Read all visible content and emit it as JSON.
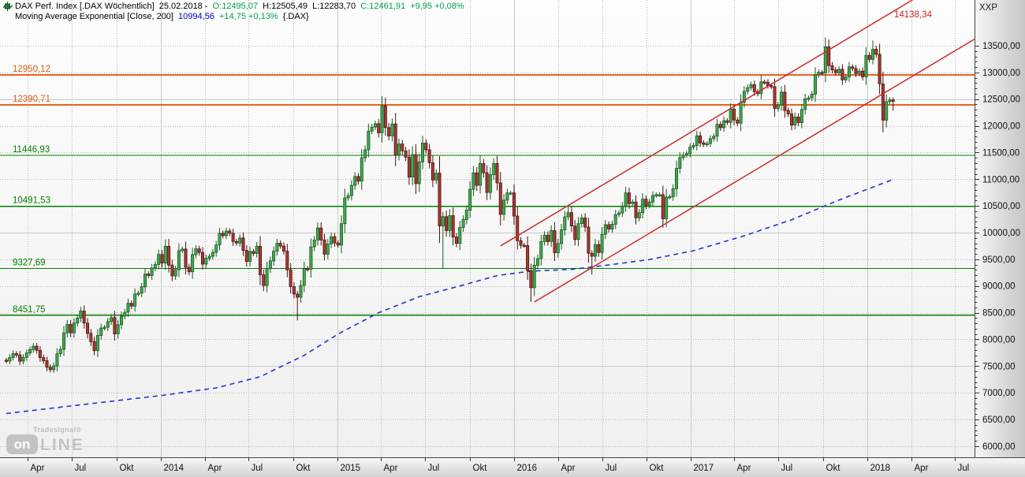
{
  "header": {
    "line1": {
      "instrument": "DAX Perf. Index [.DAX  Wöchentlich]",
      "date": "25.02.2018 -",
      "open": "O:12495,07",
      "high": "H:12505,49",
      "low": "L:12283,70",
      "close": "C:12461,91",
      "change": "+9,95 +0,08%"
    },
    "line2": {
      "indicator": "Moving Average Exponential [Close, 200]",
      "value": "10994,56",
      "change": "+14,75 +0,13%",
      "symbol": "{.DAX}"
    }
  },
  "logo": {
    "brand": "Tradesignal®",
    "box": "on",
    "line": "LINE"
  },
  "colors": {
    "quote_green": "#00a050",
    "quote_blue": "#0000cc",
    "level_green": "#008000",
    "level_orange": "#e8641e",
    "channel_red": "#cc2a2a",
    "ema_blue": "#2233cc",
    "candle_up_fill": "#44a94f",
    "candle_up_stroke": "#17591f",
    "candle_down_fill": "#a93a35",
    "candle_down_stroke": "#4a100d",
    "grid_dotted": "#b5b5b5",
    "grid_solid": "#c6cdc6",
    "axis_text": "#111111"
  },
  "chart_data": {
    "type": "candlestick",
    "timeframe": "weekly",
    "symbol": ".DAX",
    "title": "DAX Perf. Index weekly candles with EMA(200), horizontal levels and rising trend channel",
    "start": "2013-02",
    "end": "2018-02-25",
    "last_close": 12461.91,
    "first_open": 7610,
    "y_axis": {
      "min": 6000,
      "max": 13500,
      "step": 500,
      "top_label": "XXP",
      "labels": [
        "13500,00",
        "13000,00",
        "12500,00",
        "12000,00",
        "11500,00",
        "11000,00",
        "10500,00",
        "10000,00",
        "9500,00",
        "9000,00",
        "8500,00",
        "8000,00",
        "7500,00",
        "7000,00",
        "6500,00",
        "6000,00"
      ],
      "solid_gridlines": [
        12500,
        10000,
        7500
      ]
    },
    "x_ticks": [
      {
        "label": "Apr",
        "bar": 6.4,
        "year": false
      },
      {
        "label": "Jul",
        "bar": 19.4,
        "year": false
      },
      {
        "label": "Okt",
        "bar": 32.6,
        "year": false
      },
      {
        "label": "2014",
        "bar": 45.7,
        "year": true
      },
      {
        "label": "Apr",
        "bar": 58.6,
        "year": false
      },
      {
        "label": "Jul",
        "bar": 71.6,
        "year": false
      },
      {
        "label": "Okt",
        "bar": 84.7,
        "year": false
      },
      {
        "label": "2015",
        "bar": 97.9,
        "year": true
      },
      {
        "label": "Apr",
        "bar": 110.7,
        "year": false
      },
      {
        "label": "Jul",
        "bar": 123.7,
        "year": false
      },
      {
        "label": "Okt",
        "bar": 136.9,
        "year": false
      },
      {
        "label": "2016",
        "bar": 150.0,
        "year": true
      },
      {
        "label": "Apr",
        "bar": 163.0,
        "year": false
      },
      {
        "label": "Jul",
        "bar": 176.0,
        "year": false
      },
      {
        "label": "Okt",
        "bar": 189.1,
        "year": false
      },
      {
        "label": "2017",
        "bar": 202.3,
        "year": true
      },
      {
        "label": "Apr",
        "bar": 215.1,
        "year": false
      },
      {
        "label": "Jul",
        "bar": 228.1,
        "year": false
      },
      {
        "label": "Okt",
        "bar": 241.3,
        "year": false
      },
      {
        "label": "2018",
        "bar": 254.4,
        "year": true
      },
      {
        "label": "Apr",
        "bar": 267.3,
        "year": false
      },
      {
        "label": "Jul",
        "bar": 280.3,
        "year": false
      }
    ],
    "horizontal_levels": {
      "orange": [
        {
          "value": 12950.12,
          "label": "12950,12"
        },
        {
          "value": 12390.71,
          "label": "12390,71"
        }
      ],
      "green": [
        {
          "value": 11446.93,
          "label": "11446,93"
        },
        {
          "value": 10491.53,
          "label": "10491,53"
        },
        {
          "value": 9327.69,
          "label": "9327,69"
        },
        {
          "value": 8451.75,
          "label": "8451,75"
        }
      ]
    },
    "trend_channel": {
      "label": "14138,34",
      "upper": {
        "bar1": 146,
        "value1": 9750,
        "bar2": 268,
        "value2": 14369
      },
      "lower": {
        "bar1": 156,
        "value1": 8700,
        "bar2": 286,
        "value2": 13622
      }
    },
    "ema200": {
      "period": 200,
      "last_value": 10994.56,
      "anchors": [
        [
          0,
          6610
        ],
        [
          20,
          6760
        ],
        [
          46,
          6950
        ],
        [
          62,
          7090
        ],
        [
          75,
          7300
        ],
        [
          88,
          7700
        ],
        [
          98,
          8100
        ],
        [
          110,
          8500
        ],
        [
          122,
          8800
        ],
        [
          134,
          9000
        ],
        [
          145,
          9195
        ],
        [
          155,
          9280
        ],
        [
          167,
          9310
        ],
        [
          178,
          9395
        ],
        [
          190,
          9495
        ],
        [
          203,
          9660
        ],
        [
          218,
          9940
        ],
        [
          232,
          10240
        ],
        [
          246,
          10610
        ],
        [
          262,
          10995
        ]
      ]
    },
    "weekly_closes": [
      7594,
      7661,
      7732,
      7708,
      7592,
      7662,
      7745,
      7808,
      7872,
      7795,
      7658,
      7600,
      7478,
      7433,
      7503,
      7730,
      7814,
      8122,
      8279,
      8123,
      8306,
      8398,
      8530,
      8305,
      8111,
      7959,
      7789,
      8073,
      8212,
      8226,
      8332,
      8408,
      8103,
      8275,
      8435,
      8509,
      8675,
      8623,
      8850,
      8865,
      8985,
      9225,
      9196,
      9335,
      9402,
      9589,
      9428,
      9743,
      9392,
      9188,
      9306,
      9662,
      9692,
      9351,
      9266,
      9587,
      9696,
      9628,
      9409,
      9518,
      9556,
      9629,
      9768,
      9987,
      9943,
      10029,
      9987,
      9833,
      9805,
      9899,
      9666,
      9459,
      9645,
      9609,
      9745,
      9210,
      9009,
      9326,
      9470,
      9651,
      9799,
      9749,
      9651,
      9301,
      8989,
      8850,
      8789,
      9011,
      9327,
      9315,
      9733,
      9861,
      10087,
      9862,
      9594,
      9787,
      9922,
      9806,
      9765,
      10167,
      10649,
      10694,
      10885,
      11050,
      10963,
      11401,
      11551,
      11902,
      11976,
      12039,
      11868,
      12374,
      11966,
      11811,
      12035,
      11450,
      11660,
      11532,
      11414,
      11040,
      11460,
      10916,
      11324,
      11674,
      11550,
      11309,
      10985,
      11114,
      10124,
      10299,
      10038,
      10317,
      9916,
      9798,
      10096,
      10243,
      10420,
      10810,
      11120,
      10886,
      11293,
      11119,
      10752,
      11086,
      11294,
      10930,
      10340,
      10608,
      10743,
      10743,
      10310,
      9849,
      9764,
      9757,
      9286,
      8967,
      9388,
      9513,
      9831,
      9951,
      9831,
      10037,
      9623,
      9795,
      10052,
      10295,
      10373,
      10123,
      9870,
      10167,
      10274,
      10103,
      9612,
      9557,
      9776,
      9629,
      9968,
      10147,
      10066,
      10157,
      10337,
      10367,
      10498,
      10745,
      10544,
      10573,
      10276,
      10373,
      10626,
      10511,
      10573,
      10696,
      10710,
      10711,
      10259,
      10665,
      10674,
      10821,
      11203,
      11404,
      11450,
      11481,
      11599,
      11630,
      11814,
      11681,
      11651,
      11667,
      11757,
      11804,
      12027,
      11963,
      12095,
      12064,
      12313,
      12109,
      12049,
      12438,
      12646,
      12716,
      12770,
      12639,
      12602,
      12823,
      12815,
      12753,
      12733,
      12325,
      12389,
      12631,
      12287,
      12222,
      12014,
      12165,
      12060,
      12304,
      12504,
      12522,
      12592,
      12955,
      13003,
      12992,
      13479,
      13127,
      13047,
      12994,
      13059,
      12861,
      12917,
      13104,
      13073,
      12980,
      13024,
      12918,
      13320,
      13245,
      13434,
      13340,
      12785,
      12107,
      12452,
      12484,
      12462
    ],
    "wick_overrides": {
      "highs": {
        "111": 12390,
        "140": 11430,
        "166": 10474,
        "223": 12951,
        "242": 13525,
        "256": 13597,
        "262": 12506
      },
      "lows": {
        "76": 8903,
        "86": 8354,
        "129": 9338,
        "155": 8699,
        "173": 9214,
        "259": 12003,
        "262": 12284
      }
    }
  }
}
